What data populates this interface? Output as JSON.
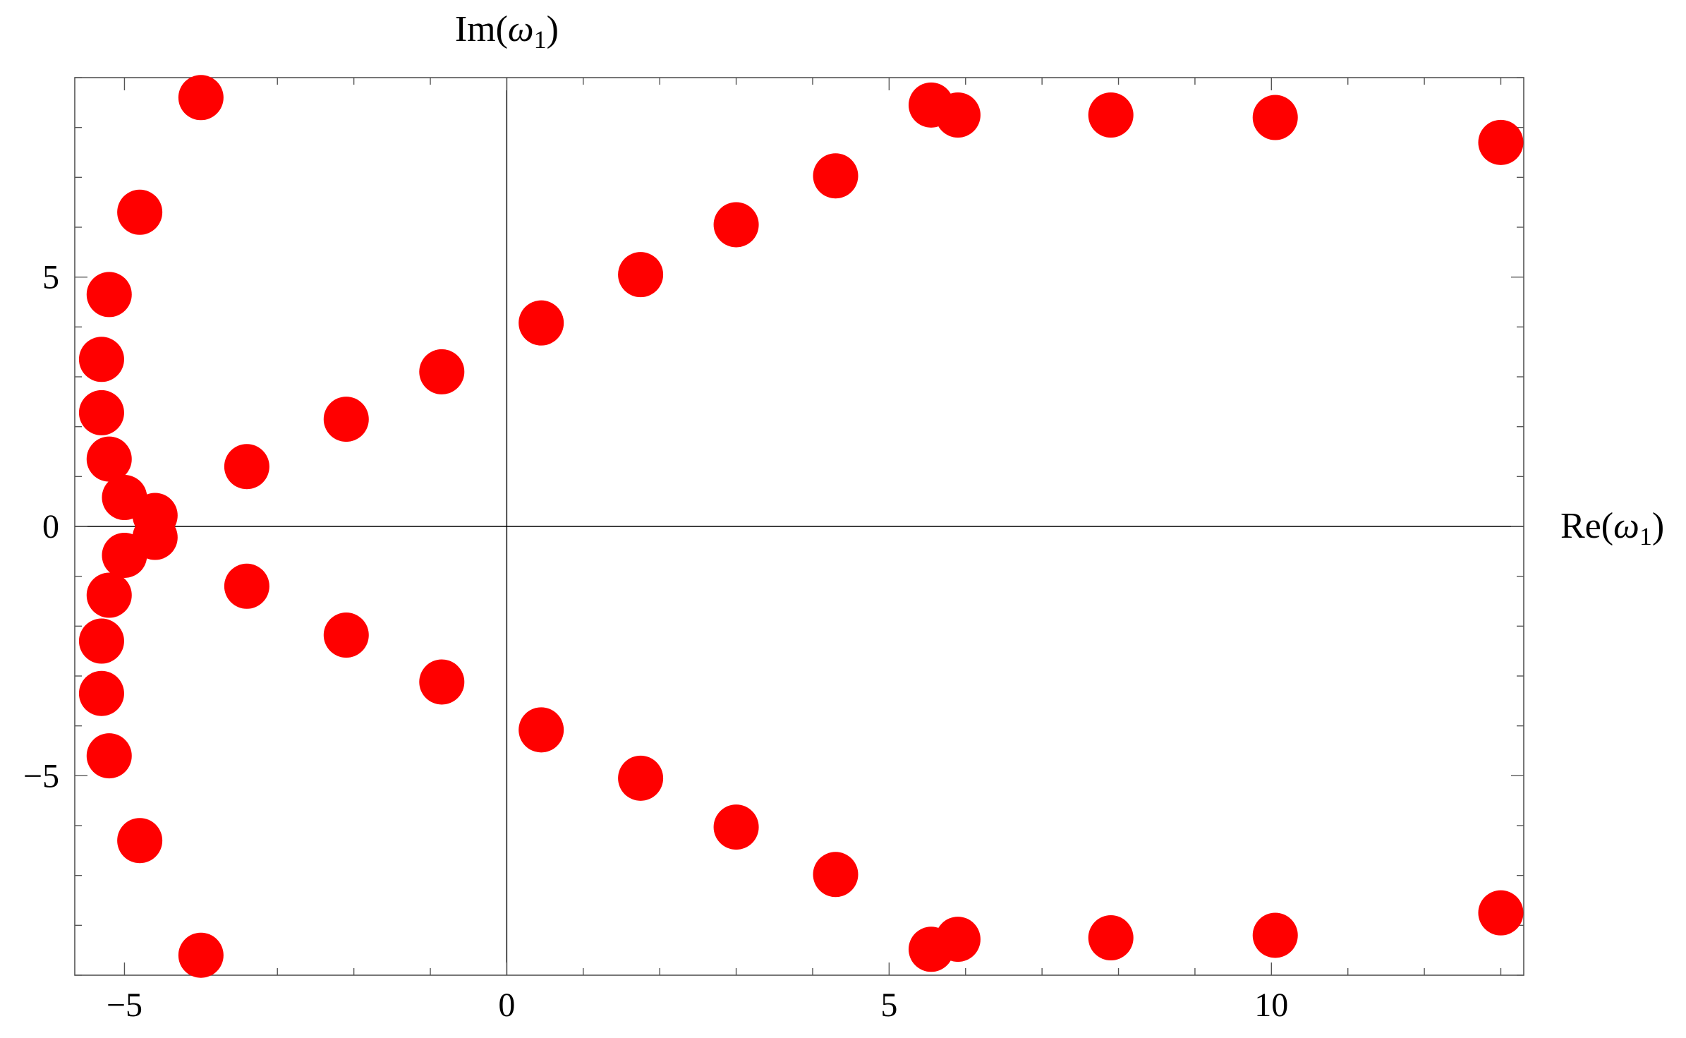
{
  "chart_data": {
    "type": "scatter",
    "xlabel": "Re(ω₁)",
    "ylabel": "Im(ω₁)",
    "xlabel_parts": {
      "pre": "Re(",
      "var": "ω",
      "sub": "1",
      "post": ")"
    },
    "ylabel_parts": {
      "pre": "Im(",
      "var": "ω",
      "sub": "1",
      "post": ")"
    },
    "xlim": [
      -5.65,
      13.3
    ],
    "ylim": [
      -9.0,
      9.0
    ],
    "x_ticks": [
      -5,
      0,
      5,
      10
    ],
    "x_tick_labels": [
      "−5",
      "0",
      "5",
      "10"
    ],
    "y_ticks": [
      -5,
      0,
      5
    ],
    "y_tick_labels": [
      "−5",
      "0",
      "5"
    ],
    "x_minor_step": 1,
    "y_minor_step": 1,
    "frame": true,
    "axes_through_origin": true,
    "grid": false,
    "marker_color": "#ff0000",
    "series": [
      {
        "points": [
          {
            "x": -4.0,
            "y": 8.6
          },
          {
            "x": -4.8,
            "y": 6.3
          },
          {
            "x": -5.2,
            "y": 4.65
          },
          {
            "x": -5.3,
            "y": 3.35
          },
          {
            "x": -5.3,
            "y": 2.28
          },
          {
            "x": -5.2,
            "y": 1.35
          },
          {
            "x": -5.0,
            "y": 0.58
          },
          {
            "x": -4.6,
            "y": 0.22
          },
          {
            "x": -4.6,
            "y": -0.22
          },
          {
            "x": -5.0,
            "y": -0.58
          },
          {
            "x": -5.2,
            "y": -1.38
          },
          {
            "x": -5.3,
            "y": -2.3
          },
          {
            "x": -5.3,
            "y": -3.35
          },
          {
            "x": -5.2,
            "y": -4.6
          },
          {
            "x": -4.8,
            "y": -6.3
          },
          {
            "x": -4.0,
            "y": -8.6
          },
          {
            "x": -3.4,
            "y": 1.2
          },
          {
            "x": -2.1,
            "y": 2.15
          },
          {
            "x": -0.85,
            "y": 3.1
          },
          {
            "x": 0.45,
            "y": 4.08
          },
          {
            "x": 1.75,
            "y": 5.05
          },
          {
            "x": 3.0,
            "y": 6.05
          },
          {
            "x": 4.3,
            "y": 7.03
          },
          {
            "x": 5.55,
            "y": 8.45
          },
          {
            "x": 5.9,
            "y": 8.25
          },
          {
            "x": 7.9,
            "y": 8.25
          },
          {
            "x": 10.05,
            "y": 8.2
          },
          {
            "x": 13.0,
            "y": 7.7
          },
          {
            "x": -3.4,
            "y": -1.2
          },
          {
            "x": -2.1,
            "y": -2.18
          },
          {
            "x": -0.85,
            "y": -3.12
          },
          {
            "x": 0.45,
            "y": -4.08
          },
          {
            "x": 1.75,
            "y": -5.05
          },
          {
            "x": 3.0,
            "y": -6.03
          },
          {
            "x": 4.3,
            "y": -6.98
          },
          {
            "x": 5.55,
            "y": -8.48
          },
          {
            "x": 5.9,
            "y": -8.28
          },
          {
            "x": 7.9,
            "y": -8.25
          },
          {
            "x": 10.05,
            "y": -8.2
          },
          {
            "x": 13.0,
            "y": -7.75
          }
        ]
      }
    ]
  }
}
